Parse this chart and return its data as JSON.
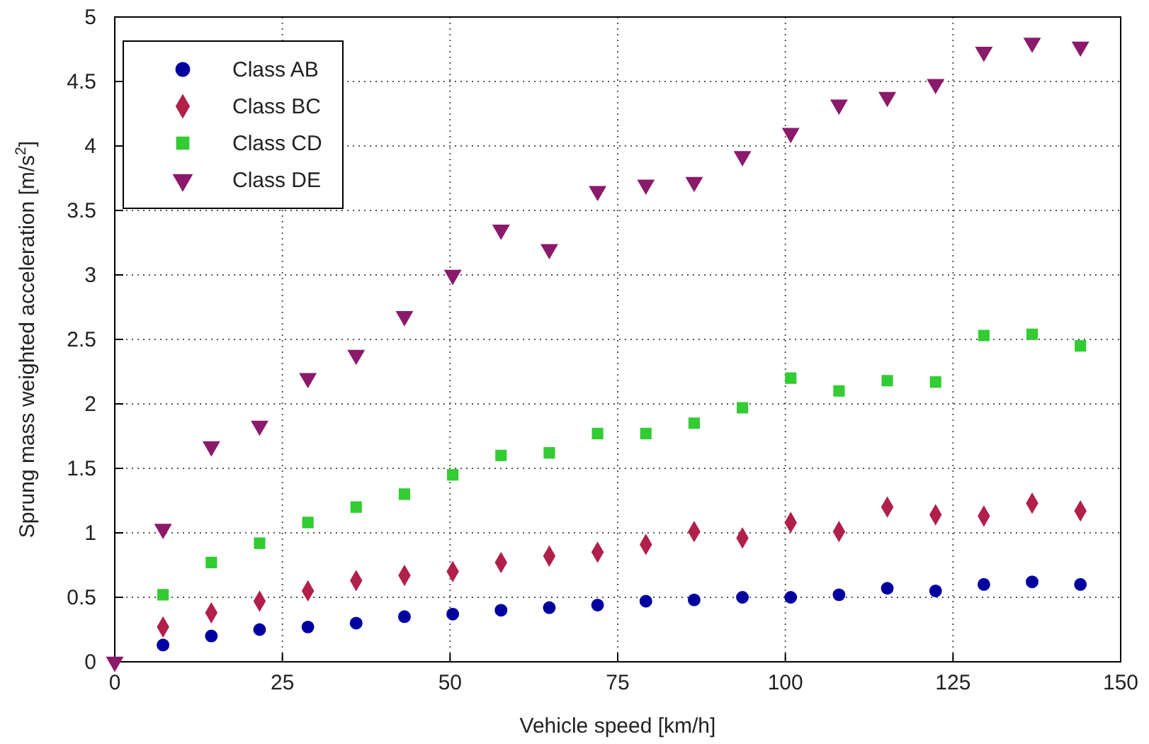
{
  "chart_data": {
    "type": "scatter",
    "xlabel": "Vehicle speed [km/h]",
    "ylabel": "Sprung mass weighted acceleration [m/s$^{2}$]",
    "x": [
      0,
      7.2,
      14.4,
      21.6,
      28.8,
      36,
      43.2,
      50.4,
      57.6,
      64.8,
      72,
      79.2,
      86.4,
      93.6,
      100.8,
      108,
      115.2,
      122.4,
      129.6,
      136.8,
      144
    ],
    "series": [
      {
        "name": "Class AB",
        "color": "#0000a0",
        "marker": "circle",
        "values": [
          null,
          0.13,
          0.2,
          0.25,
          0.27,
          0.3,
          0.35,
          0.37,
          0.4,
          0.42,
          0.44,
          0.47,
          0.48,
          0.5,
          0.5,
          0.52,
          0.57,
          0.55,
          0.6,
          0.62,
          0.6
        ]
      },
      {
        "name": "Class BC",
        "color": "#b0204a",
        "marker": "diamond",
        "values": [
          null,
          0.27,
          0.38,
          0.47,
          0.55,
          0.63,
          0.67,
          0.7,
          0.77,
          0.82,
          0.85,
          0.91,
          1.01,
          0.96,
          1.08,
          1.01,
          1.2,
          1.14,
          1.13,
          1.23,
          1.17
        ]
      },
      {
        "name": "Class CD",
        "color": "#33cc33",
        "marker": "square",
        "values": [
          null,
          0.52,
          0.77,
          0.92,
          1.08,
          1.2,
          1.3,
          1.45,
          1.6,
          1.62,
          1.77,
          1.77,
          1.85,
          1.97,
          2.2,
          2.1,
          2.18,
          2.17,
          2.53,
          2.54,
          2.45
        ]
      },
      {
        "name": "Class DE",
        "color": "#8b1a6b",
        "marker": "triangle-down",
        "values": [
          0,
          1.03,
          1.67,
          1.83,
          2.2,
          2.38,
          2.68,
          3,
          3.35,
          3.2,
          3.65,
          3.7,
          3.72,
          3.92,
          4.1,
          4.32,
          4.38,
          4.48,
          4.73,
          4.8,
          4.77
        ]
      }
    ],
    "xlim": [
      0,
      150
    ],
    "xticks": [
      0,
      25,
      50,
      75,
      100,
      125,
      150
    ],
    "ylim": [
      0,
      5
    ],
    "yticks": [
      0,
      0.5,
      1,
      1.5,
      2,
      2.5,
      3,
      3.5,
      4,
      4.5,
      5
    ],
    "grid": true,
    "legend": "top left"
  }
}
